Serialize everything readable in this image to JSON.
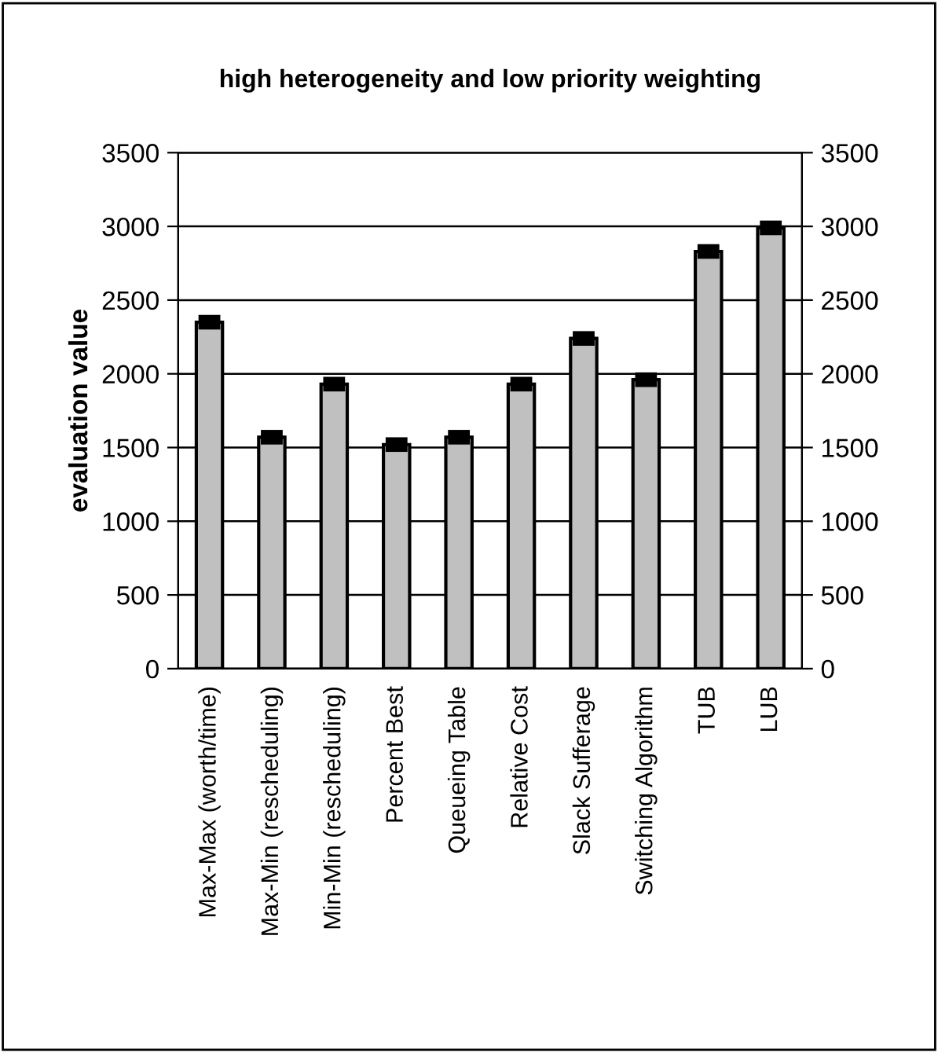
{
  "chart_data": {
    "type": "bar",
    "title": "high heterogeneity and low priority weighting",
    "ylabel": "evaluation value",
    "categories": [
      "Max-Max (worth/time)",
      "Max-Min (rescheduling)",
      "Min-Min (rescheduling)",
      "Percent Best",
      "Queueing Table",
      "Relative Cost",
      "Slack Sufferage",
      "Switching Algorithm",
      "TUB",
      "LUB"
    ],
    "values": [
      2350,
      1570,
      1930,
      1520,
      1570,
      1930,
      2240,
      1960,
      2830,
      2990
    ],
    "errors": [
      20,
      20,
      20,
      20,
      20,
      20,
      20,
      20,
      20,
      20
    ],
    "color": "#c0c0c0",
    "ylim": [
      0,
      3500
    ],
    "yticks": [
      0,
      500,
      1000,
      1500,
      2000,
      2500,
      3000,
      3500
    ],
    "y2lim": [
      0,
      3500
    ],
    "y2ticks": [
      0,
      500,
      1000,
      1500,
      2000,
      2500,
      3000,
      3500
    ],
    "grid": "y",
    "legend": false
  }
}
